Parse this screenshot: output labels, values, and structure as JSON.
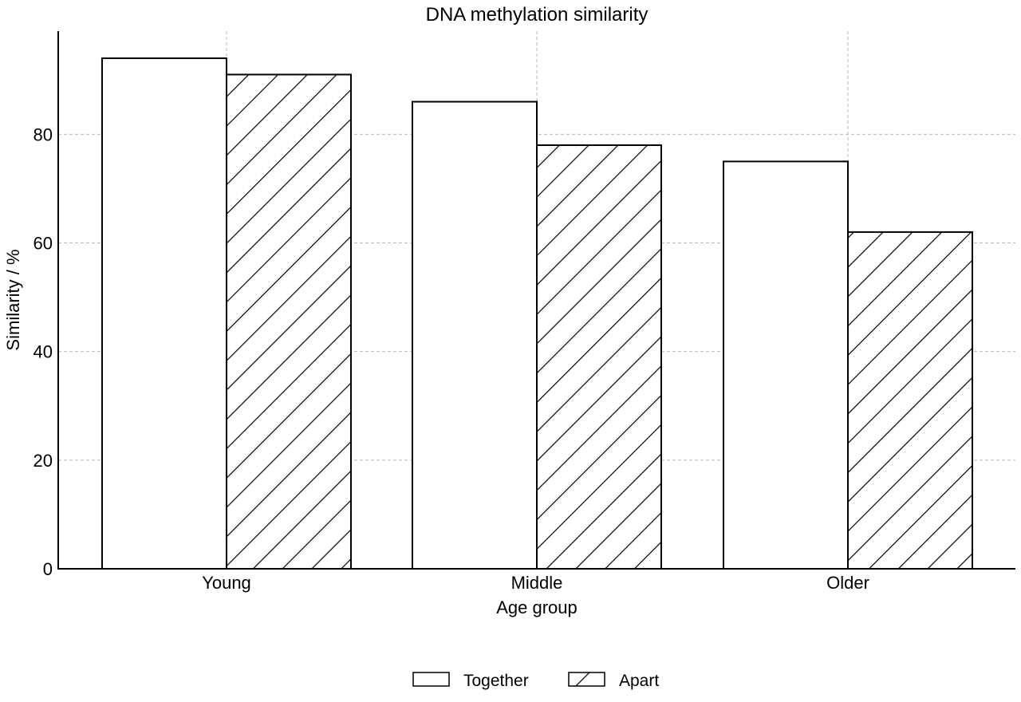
{
  "chart_data": {
    "type": "bar",
    "title": "DNA methylation similarity",
    "xlabel": "Age group",
    "ylabel": "Similarity / %",
    "categories": [
      "Young",
      "Middle",
      "Older"
    ],
    "series": [
      {
        "name": "Together",
        "values": [
          94,
          86,
          75
        ],
        "pattern": "none"
      },
      {
        "name": "Apart",
        "values": [
          91,
          78,
          62
        ],
        "pattern": "diagonal-hatch"
      }
    ],
    "ylim": [
      0,
      99
    ],
    "yticks": [
      0,
      20,
      40,
      60,
      80
    ],
    "grid": true,
    "legend_position": "bottom-center",
    "colors": {
      "fill": "#ffffff",
      "edge": "#000000",
      "grid": "#b8b8b8"
    }
  }
}
